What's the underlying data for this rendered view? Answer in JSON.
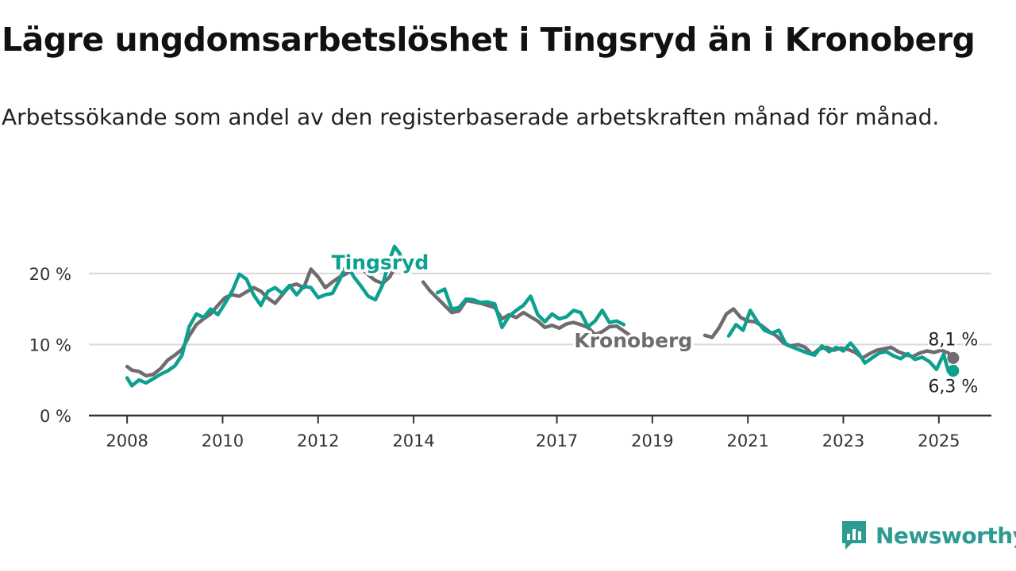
{
  "title": "Lägre ungdomsarbetslöshet i Tingsryd än i Kronoberg",
  "subtitle": "Arbetssökande som andel av den registerbaserade arbetskraften månad för månad.",
  "brand": {
    "name": "Newsworthy",
    "color": "#2c9b91"
  },
  "chart_data": {
    "type": "line",
    "x_ticks": [
      "2008",
      "2010",
      "2012",
      "2014",
      "2017",
      "2019",
      "2021",
      "2023",
      "2025"
    ],
    "x_tick_years": [
      2008,
      2010,
      2012,
      2014,
      2017,
      2019,
      2021,
      2023,
      2025
    ],
    "x_range": [
      2007.2,
      2026.1
    ],
    "y_ticks": [
      {
        "value": 0,
        "label": "0 %"
      },
      {
        "value": 10,
        "label": "10 %"
      },
      {
        "value": 20,
        "label": "20 %"
      }
    ],
    "ylim": [
      0,
      25
    ],
    "grid": true,
    "series": [
      {
        "name": "Kronoberg",
        "color": "#6f6b6f",
        "label_position": [
          2018.6,
          9.6
        ],
        "end_label": "8,1 %",
        "data": [
          [
            2008.0,
            6.9
          ],
          [
            2008.1,
            6.4
          ],
          [
            2008.25,
            6.2
          ],
          [
            2008.4,
            5.6
          ],
          [
            2008.55,
            5.8
          ],
          [
            2008.7,
            6.6
          ],
          [
            2008.85,
            7.8
          ],
          [
            2009.0,
            8.5
          ],
          [
            2009.15,
            9.3
          ],
          [
            2009.3,
            11.2
          ],
          [
            2009.45,
            12.8
          ],
          [
            2009.6,
            13.6
          ],
          [
            2009.75,
            14.3
          ],
          [
            2009.9,
            15.5
          ],
          [
            2010.05,
            16.6
          ],
          [
            2010.2,
            17.0
          ],
          [
            2010.35,
            16.8
          ],
          [
            2010.5,
            17.4
          ],
          [
            2010.65,
            18.0
          ],
          [
            2010.8,
            17.5
          ],
          [
            2010.95,
            16.5
          ],
          [
            2011.1,
            15.8
          ],
          [
            2011.25,
            17.0
          ],
          [
            2011.4,
            18.2
          ],
          [
            2011.55,
            18.5
          ],
          [
            2011.7,
            18.0
          ],
          [
            2011.85,
            20.6
          ],
          [
            2012.0,
            19.5
          ],
          [
            2012.15,
            18.0
          ],
          [
            2012.3,
            18.8
          ],
          [
            2012.45,
            19.5
          ],
          [
            2012.6,
            20.0
          ],
          [
            2012.75,
            20.7
          ],
          [
            2012.9,
            20.9
          ],
          [
            2013.05,
            19.8
          ],
          [
            2013.2,
            19.0
          ],
          [
            2013.35,
            18.6
          ],
          [
            2013.5,
            19.5
          ],
          [
            2013.6,
            20.8
          ],
          [
            2014.2,
            18.8
          ],
          [
            2014.35,
            17.5
          ],
          [
            2014.5,
            16.5
          ],
          [
            2014.65,
            15.5
          ],
          [
            2014.8,
            14.5
          ],
          [
            2014.95,
            14.7
          ],
          [
            2015.1,
            16.2
          ],
          [
            2015.25,
            16.0
          ],
          [
            2015.4,
            15.8
          ],
          [
            2015.55,
            15.5
          ],
          [
            2015.7,
            15.2
          ],
          [
            2015.85,
            13.6
          ],
          [
            2016.0,
            14.2
          ],
          [
            2016.15,
            13.8
          ],
          [
            2016.3,
            14.5
          ],
          [
            2016.45,
            13.9
          ],
          [
            2016.6,
            13.3
          ],
          [
            2016.75,
            12.4
          ],
          [
            2016.9,
            12.7
          ],
          [
            2017.05,
            12.3
          ],
          [
            2017.2,
            12.9
          ],
          [
            2017.35,
            13.1
          ],
          [
            2017.5,
            12.8
          ],
          [
            2017.65,
            12.4
          ],
          [
            2017.8,
            11.4
          ],
          [
            2017.95,
            11.8
          ],
          [
            2018.1,
            12.5
          ],
          [
            2018.25,
            12.6
          ],
          [
            2018.4,
            11.9
          ],
          [
            2018.55,
            11.2
          ],
          [
            2020.1,
            11.3
          ],
          [
            2020.25,
            11.0
          ],
          [
            2020.4,
            12.4
          ],
          [
            2020.55,
            14.3
          ],
          [
            2020.7,
            15.0
          ],
          [
            2020.85,
            13.8
          ],
          [
            2021.0,
            13.3
          ],
          [
            2021.15,
            13.2
          ],
          [
            2021.3,
            12.6
          ],
          [
            2021.45,
            11.8
          ],
          [
            2021.6,
            11.2
          ],
          [
            2021.75,
            10.2
          ],
          [
            2021.9,
            9.8
          ],
          [
            2022.05,
            10.0
          ],
          [
            2022.2,
            9.6
          ],
          [
            2022.35,
            8.6
          ],
          [
            2022.5,
            9.4
          ],
          [
            2022.65,
            9.6
          ],
          [
            2022.8,
            9.2
          ],
          [
            2022.95,
            9.5
          ],
          [
            2023.1,
            9.3
          ],
          [
            2023.25,
            8.9
          ],
          [
            2023.4,
            8.1
          ],
          [
            2023.55,
            8.7
          ],
          [
            2023.7,
            9.2
          ],
          [
            2023.85,
            9.4
          ],
          [
            2024.0,
            9.6
          ],
          [
            2024.15,
            9.0
          ],
          [
            2024.3,
            8.6
          ],
          [
            2024.45,
            8.3
          ],
          [
            2024.6,
            8.8
          ],
          [
            2024.75,
            9.1
          ],
          [
            2024.9,
            8.9
          ],
          [
            2025.05,
            9.2
          ],
          [
            2025.2,
            8.8
          ],
          [
            2025.3,
            8.1
          ]
        ]
      },
      {
        "name": "Tingsryd",
        "color": "#0ca08f",
        "label_position": [
          2013.3,
          20.6
        ],
        "end_label": "6,3 %",
        "data": [
          [
            2008.0,
            5.3
          ],
          [
            2008.1,
            4.2
          ],
          [
            2008.25,
            5.0
          ],
          [
            2008.4,
            4.6
          ],
          [
            2008.55,
            5.2
          ],
          [
            2008.7,
            5.8
          ],
          [
            2008.85,
            6.3
          ],
          [
            2009.0,
            7.0
          ],
          [
            2009.15,
            8.5
          ],
          [
            2009.3,
            12.5
          ],
          [
            2009.45,
            14.3
          ],
          [
            2009.6,
            13.8
          ],
          [
            2009.75,
            15.0
          ],
          [
            2009.9,
            14.2
          ],
          [
            2010.05,
            15.8
          ],
          [
            2010.2,
            17.5
          ],
          [
            2010.35,
            19.9
          ],
          [
            2010.5,
            19.2
          ],
          [
            2010.65,
            17.0
          ],
          [
            2010.8,
            15.5
          ],
          [
            2010.95,
            17.5
          ],
          [
            2011.1,
            18.0
          ],
          [
            2011.25,
            17.2
          ],
          [
            2011.4,
            18.3
          ],
          [
            2011.55,
            17.0
          ],
          [
            2011.7,
            18.2
          ],
          [
            2011.85,
            18.0
          ],
          [
            2012.0,
            16.6
          ],
          [
            2012.15,
            17.0
          ],
          [
            2012.3,
            17.2
          ],
          [
            2012.45,
            19.1
          ],
          [
            2012.6,
            21.3
          ],
          [
            2012.75,
            19.5
          ],
          [
            2012.9,
            18.2
          ],
          [
            2013.05,
            16.8
          ],
          [
            2013.2,
            16.3
          ],
          [
            2013.35,
            18.4
          ],
          [
            2013.5,
            22.0
          ],
          [
            2013.6,
            23.8
          ],
          [
            2013.7,
            22.9
          ],
          [
            2013.8,
            21.2
          ],
          [
            2014.5,
            17.3
          ],
          [
            2014.65,
            17.8
          ],
          [
            2014.8,
            15.0
          ],
          [
            2014.95,
            15.2
          ],
          [
            2015.1,
            16.4
          ],
          [
            2015.25,
            16.3
          ],
          [
            2015.4,
            15.9
          ],
          [
            2015.55,
            16.0
          ],
          [
            2015.7,
            15.7
          ],
          [
            2015.85,
            12.4
          ],
          [
            2016.0,
            14.0
          ],
          [
            2016.15,
            14.8
          ],
          [
            2016.3,
            15.5
          ],
          [
            2016.45,
            16.8
          ],
          [
            2016.6,
            14.2
          ],
          [
            2016.75,
            13.2
          ],
          [
            2016.9,
            14.3
          ],
          [
            2017.05,
            13.6
          ],
          [
            2017.2,
            13.9
          ],
          [
            2017.35,
            14.8
          ],
          [
            2017.5,
            14.5
          ],
          [
            2017.65,
            12.5
          ],
          [
            2017.8,
            13.3
          ],
          [
            2017.95,
            14.8
          ],
          [
            2018.1,
            13.1
          ],
          [
            2018.25,
            13.3
          ],
          [
            2018.4,
            12.8
          ],
          [
            2020.6,
            11.2
          ],
          [
            2020.75,
            12.8
          ],
          [
            2020.9,
            12.0
          ],
          [
            2021.05,
            14.8
          ],
          [
            2021.2,
            13.2
          ],
          [
            2021.35,
            12.0
          ],
          [
            2021.5,
            11.6
          ],
          [
            2021.65,
            12.0
          ],
          [
            2021.8,
            10.0
          ],
          [
            2021.95,
            9.6
          ],
          [
            2022.1,
            9.2
          ],
          [
            2022.25,
            8.8
          ],
          [
            2022.4,
            8.5
          ],
          [
            2022.55,
            9.8
          ],
          [
            2022.7,
            9.0
          ],
          [
            2022.85,
            9.6
          ],
          [
            2023.0,
            9.1
          ],
          [
            2023.15,
            10.2
          ],
          [
            2023.3,
            9.0
          ],
          [
            2023.45,
            7.4
          ],
          [
            2023.6,
            8.1
          ],
          [
            2023.75,
            8.8
          ],
          [
            2023.9,
            9.0
          ],
          [
            2024.05,
            8.4
          ],
          [
            2024.2,
            8.0
          ],
          [
            2024.35,
            8.7
          ],
          [
            2024.5,
            7.9
          ],
          [
            2024.65,
            8.2
          ],
          [
            2024.8,
            7.6
          ],
          [
            2024.95,
            6.5
          ],
          [
            2025.1,
            8.6
          ],
          [
            2025.2,
            6.2
          ],
          [
            2025.3,
            6.3
          ]
        ]
      }
    ]
  }
}
